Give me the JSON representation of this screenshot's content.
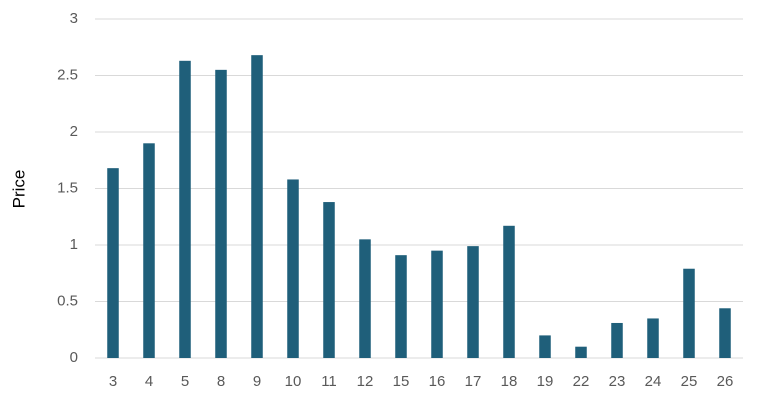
{
  "chart_data": {
    "type": "bar",
    "y_label": "Price",
    "categories": [
      "3",
      "4",
      "5",
      "8",
      "9",
      "10",
      "11",
      "12",
      "15",
      "16",
      "17",
      "18",
      "19",
      "22",
      "23",
      "24",
      "25",
      "26"
    ],
    "values": [
      1.68,
      1.9,
      2.63,
      2.55,
      2.68,
      1.58,
      1.38,
      1.05,
      0.91,
      0.95,
      0.99,
      1.17,
      0.2,
      0.1,
      0.31,
      0.35,
      0.79,
      0.44
    ],
    "color": "#1f5f7a",
    "ylim": [
      0,
      3
    ],
    "yticks": [
      0,
      0.5,
      1,
      1.5,
      2,
      2.5,
      3
    ],
    "grid": true
  }
}
